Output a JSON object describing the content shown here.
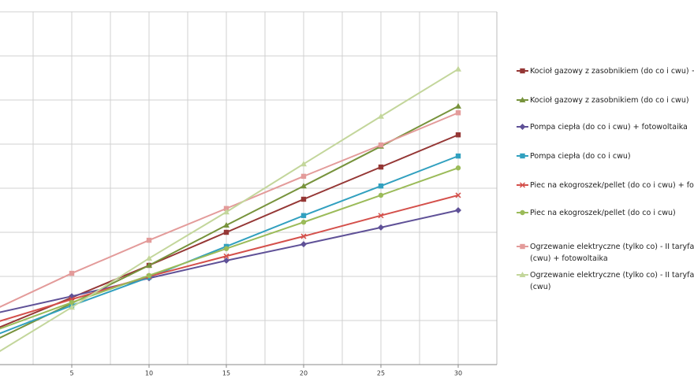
{
  "chart_data": {
    "type": "line",
    "x": [
      0,
      5,
      10,
      15,
      20,
      25,
      30
    ],
    "xlim": [
      0,
      32.5
    ],
    "xticks": [
      5,
      10,
      15,
      20,
      25,
      30
    ],
    "xgrid": [
      2.5,
      5,
      7.5,
      10,
      12.5,
      15,
      17.5,
      20,
      22.5,
      25,
      27.5,
      30
    ],
    "ylim": [
      0,
      8
    ],
    "ygrid": [
      0,
      1,
      2,
      3,
      4,
      5,
      6,
      7,
      8
    ],
    "series": [
      {
        "name": "Kocioł gazowy z zasobnikiem (do co i cwu) + foto",
        "color": "#953735",
        "marker": "square",
        "values": [
          0.8,
          1.52,
          2.25,
          3.0,
          3.75,
          4.48,
          5.21
        ]
      },
      {
        "name": "Kocioł gazowy z zasobnikiem (do co i cwu)",
        "color": "#77933c",
        "marker": "triangle",
        "values": [
          0.55,
          1.39,
          2.25,
          3.16,
          4.05,
          4.95,
          5.86
        ]
      },
      {
        "name": "Pompa ciepła (do co i cwu) + fotowoltaika",
        "color": "#5f5197",
        "marker": "diamond",
        "values": [
          1.16,
          1.55,
          1.96,
          2.36,
          2.73,
          3.11,
          3.5
        ]
      },
      {
        "name": "Pompa ciepła (do co i cwu)",
        "color": "#31a0bf",
        "marker": "square",
        "values": [
          0.66,
          1.34,
          1.98,
          2.68,
          3.38,
          4.05,
          4.73
        ]
      },
      {
        "name": "Piec na ekogroszek/pellet (do co i cwu) + fotow",
        "color": "#d4504b",
        "marker": "x",
        "values": [
          0.95,
          1.48,
          2.0,
          2.46,
          2.91,
          3.38,
          3.84
        ]
      },
      {
        "name": "Piec na ekogroszek/pellet (do co i cwu)",
        "color": "#9bbb59",
        "marker": "circle",
        "values": [
          0.77,
          1.41,
          2.02,
          2.63,
          3.23,
          3.84,
          4.46
        ]
      },
      {
        "name": "Ogrzewanie elektryczne (tylko co) - II taryfa Podg\n(cwu) + fotowoltaika",
        "color": "#e39b9a",
        "marker": "square",
        "values": [
          1.25,
          2.07,
          2.82,
          3.54,
          4.27,
          4.98,
          5.71
        ]
      },
      {
        "name": "Ogrzewanie elektryczne (tylko co) - II taryfa Podg\n(cwu)",
        "color": "#c3d69b",
        "marker": "triangle",
        "values": [
          0.23,
          1.3,
          2.41,
          3.46,
          4.55,
          5.63,
          6.7
        ]
      }
    ]
  }
}
